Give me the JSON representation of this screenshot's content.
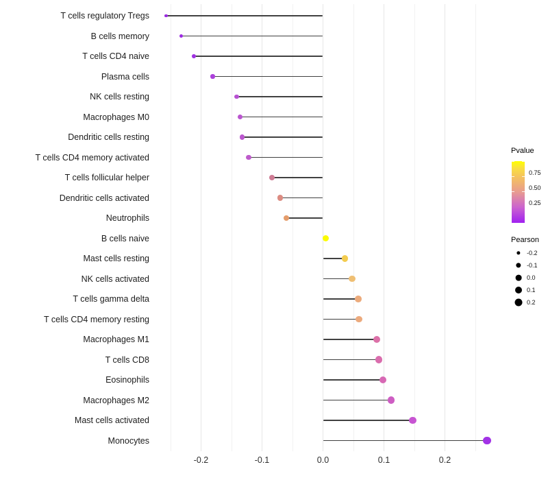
{
  "chart_data": {
    "type": "lollipop",
    "title": "",
    "xlabel": "",
    "ylabel": "",
    "x_tick_labels": [
      "-0.2",
      "-0.1",
      "0.0",
      "0.1",
      "0.2"
    ],
    "x_tick_values": [
      -0.2,
      -0.1,
      0.0,
      0.1,
      0.2
    ],
    "x_grid_values": [
      -0.25,
      -0.2,
      -0.15,
      -0.1,
      -0.05,
      0.0,
      0.05,
      0.1,
      0.15,
      0.2,
      0.25
    ],
    "xlim": [
      -0.278,
      0.295
    ],
    "grid": "vertical major (0.1 step) and minor (0.05 step), light gray, white panel",
    "legend_position": "right",
    "baseline_x": 0.0,
    "segment_color": "#404040",
    "categories": [
      "T cells regulatory  Tregs",
      "B cells memory",
      "T cells CD4 naive",
      "Plasma cells",
      "NK cells resting",
      "Macrophages M0",
      "Dendritic cells resting",
      "T cells CD4 memory activated",
      "T cells follicular helper",
      "Dendritic cells activated",
      "Neutrophils",
      "B cells naive",
      "Mast cells resting",
      "NK cells activated",
      "T cells gamma delta",
      "T cells CD4 memory resting",
      "Macrophages M1",
      "T cells CD8",
      "Eosinophils",
      "Macrophages M2",
      "Mast cells activated",
      "Monocytes"
    ],
    "series": [
      {
        "name": "Pearson",
        "values": [
          -0.257,
          -0.233,
          -0.212,
          -0.181,
          -0.142,
          -0.136,
          -0.133,
          -0.122,
          -0.084,
          -0.07,
          -0.06,
          0.005,
          0.036,
          0.048,
          0.058,
          0.059,
          0.088,
          0.092,
          0.098,
          0.112,
          0.147,
          0.269
        ]
      },
      {
        "name": "Pvalue (estimated from color)",
        "values": [
          0.02,
          0.03,
          0.04,
          0.1,
          0.18,
          0.2,
          0.21,
          0.23,
          0.45,
          0.55,
          0.62,
          0.99,
          0.82,
          0.75,
          0.68,
          0.67,
          0.42,
          0.4,
          0.37,
          0.3,
          0.25,
          0.05
        ]
      }
    ],
    "point_colors": [
      "#9b2be0",
      "#9d2be2",
      "#a032e2",
      "#ac41db",
      "#b751d2",
      "#ba55cf",
      "#bb57ce",
      "#be5bcb",
      "#ce7b94",
      "#dc8c82",
      "#e59c6b",
      "#fbfb00",
      "#f3cc4f",
      "#efbf73",
      "#ecab7c",
      "#ecaa7d",
      "#dc71a8",
      "#da6dad",
      "#d768b4",
      "#ce5dc3",
      "#c754d2",
      "#a232e6"
    ]
  },
  "legend_pvalue": {
    "title": "Pvalue",
    "ticks": [
      "0.75",
      "0.50",
      "0.25"
    ],
    "tick_offsets": [
      38,
      60,
      82
    ],
    "gradient_stops": [
      "#ffff00 0%",
      "#f9dd42 12%",
      "#f5c45c 25%",
      "#e89b90 50%",
      "#cb63cf 75%",
      "#a020f0 100%"
    ],
    "low_color": "#a020f0",
    "high_color": "#ffff00"
  },
  "legend_pearson": {
    "title": "Pearson",
    "items": [
      {
        "label": "-0.2",
        "diameter": 5.3
      },
      {
        "label": "-0.1",
        "diameter": 7.3
      },
      {
        "label": "0.0",
        "diameter": 8.8
      },
      {
        "label": "0.1",
        "diameter": 10
      },
      {
        "label": "0.2",
        "diameter": 11
      }
    ]
  }
}
